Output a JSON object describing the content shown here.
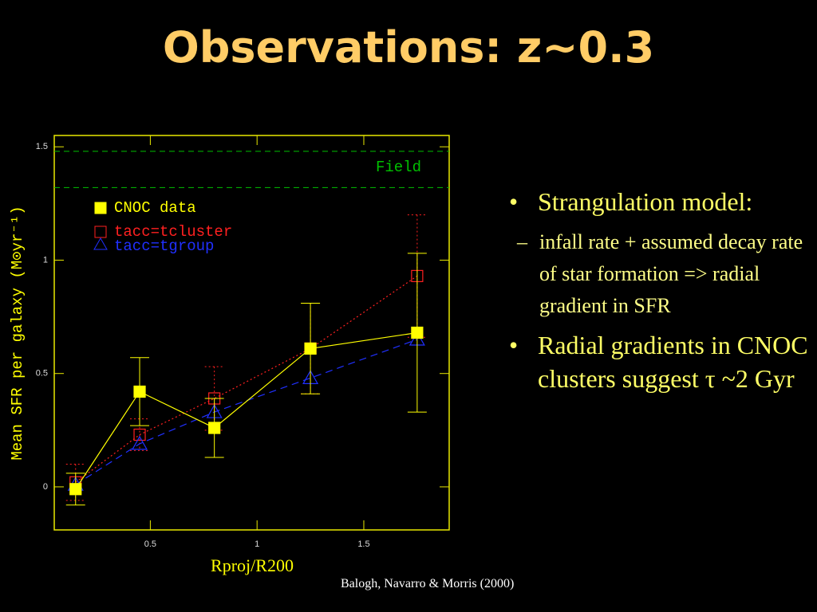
{
  "slide": {
    "title": "Observations: z~0.3",
    "bullets": [
      {
        "text": "Strangulation model:",
        "sub": [
          "infall rate + assumed decay rate of star formation => radial gradient in SFR"
        ]
      },
      {
        "text": "Radial gradients in CNOC clusters suggest τ ~2 Gyr"
      }
    ],
    "citation": "Balogh, Navarro & Morris (2000)"
  },
  "chart_data": {
    "type": "line",
    "xlabel": "Rproj/R200",
    "ylabel": "Mean SFR per galaxy (M⊙yr⁻¹)",
    "x": [
      0.15,
      0.45,
      0.8,
      1.25,
      1.75
    ],
    "series": [
      {
        "name": "CNOC data",
        "color": "#ffff00",
        "marker": "filled-square",
        "dash": "",
        "values": [
          -0.01,
          0.42,
          0.26,
          0.61,
          0.68
        ],
        "errors": [
          0.07,
          0.15,
          0.13,
          0.2,
          0.35
        ]
      },
      {
        "name": "tacc=tcluster",
        "color": "#ff2020",
        "marker": "square",
        "dash": "2,3",
        "values": [
          0.02,
          0.23,
          0.39,
          0.61,
          0.93
        ],
        "errors": [
          0.08,
          0.07,
          0.14,
          0.2,
          0.27
        ]
      },
      {
        "name": "tacc=tgroup",
        "color": "#2030ff",
        "marker": "triangle",
        "dash": "9,6",
        "values": [
          0.01,
          0.19,
          0.33,
          0.48,
          0.65
        ]
      }
    ],
    "reference_lines": [
      1.48,
      1.32
    ],
    "reference_label": "Field",
    "reference_color": "#00c000",
    "xlim": [
      0.05,
      1.9
    ],
    "ylim": [
      -0.19,
      1.55
    ],
    "xticks": [
      0.5,
      1,
      1.5
    ],
    "yticks": [
      0,
      0.5,
      1,
      1.5
    ],
    "frame_color": "#e8e800"
  }
}
